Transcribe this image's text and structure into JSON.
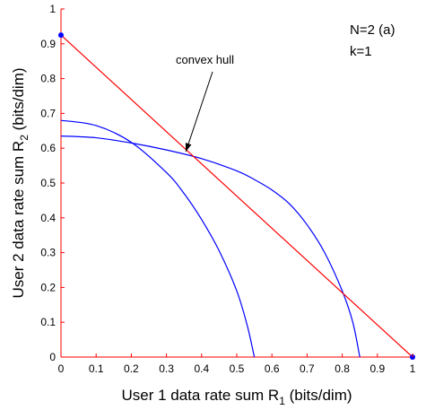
{
  "chart_data": {
    "type": "line",
    "title": "",
    "xlabel": "User 1 data rate sum R",
    "xlabel_sub": "1",
    "xlabel_unit": " (bits/dim)",
    "ylabel": "User 2 data rate sum R",
    "ylabel_sub": "2",
    "ylabel_unit": " (bits/dim)",
    "xlim": [
      0,
      1.0
    ],
    "ylim": [
      0,
      1.0
    ],
    "xticks": [
      "0",
      "0.1",
      "0.2",
      "0.3",
      "0.4",
      "0.5",
      "0.6",
      "0.7",
      "0.8",
      "0.9",
      "1"
    ],
    "yticks": [
      "0",
      "0.1",
      "0.2",
      "0.3",
      "0.4",
      "0.5",
      "0.6",
      "0.7",
      "0.8",
      "0.9",
      "1"
    ],
    "grid": false,
    "annotations": [
      {
        "text": "N=2 (a)"
      },
      {
        "text": "k=1"
      },
      {
        "text": "convex hull",
        "arrow_to": [
          0.355,
          0.59
        ]
      }
    ],
    "series": [
      {
        "color": "#0000ff",
        "x": [
          0,
          0.1,
          0.2,
          0.3,
          0.35,
          0.4,
          0.45,
          0.5,
          0.53,
          0.55
        ],
        "y": [
          0.68,
          0.665,
          0.617,
          0.53,
          0.47,
          0.395,
          0.305,
          0.19,
          0.09,
          0
        ]
      },
      {
        "color": "#0000ff",
        "x": [
          0,
          0.1,
          0.2,
          0.3,
          0.4,
          0.5,
          0.55,
          0.6,
          0.65,
          0.7,
          0.75,
          0.8,
          0.83,
          0.85
        ],
        "y": [
          0.635,
          0.63,
          0.615,
          0.595,
          0.57,
          0.535,
          0.51,
          0.48,
          0.44,
          0.38,
          0.3,
          0.19,
          0.1,
          0
        ]
      },
      {
        "color": "#ff0000",
        "x": [
          0,
          1.0
        ],
        "y": [
          0.925,
          0
        ]
      }
    ],
    "points": [
      {
        "x": 0,
        "y": 0.925,
        "color": "#0000ff"
      },
      {
        "x": 1.0,
        "y": 0,
        "color": "#0000ff"
      }
    ],
    "axis_color": "#ff0000"
  }
}
